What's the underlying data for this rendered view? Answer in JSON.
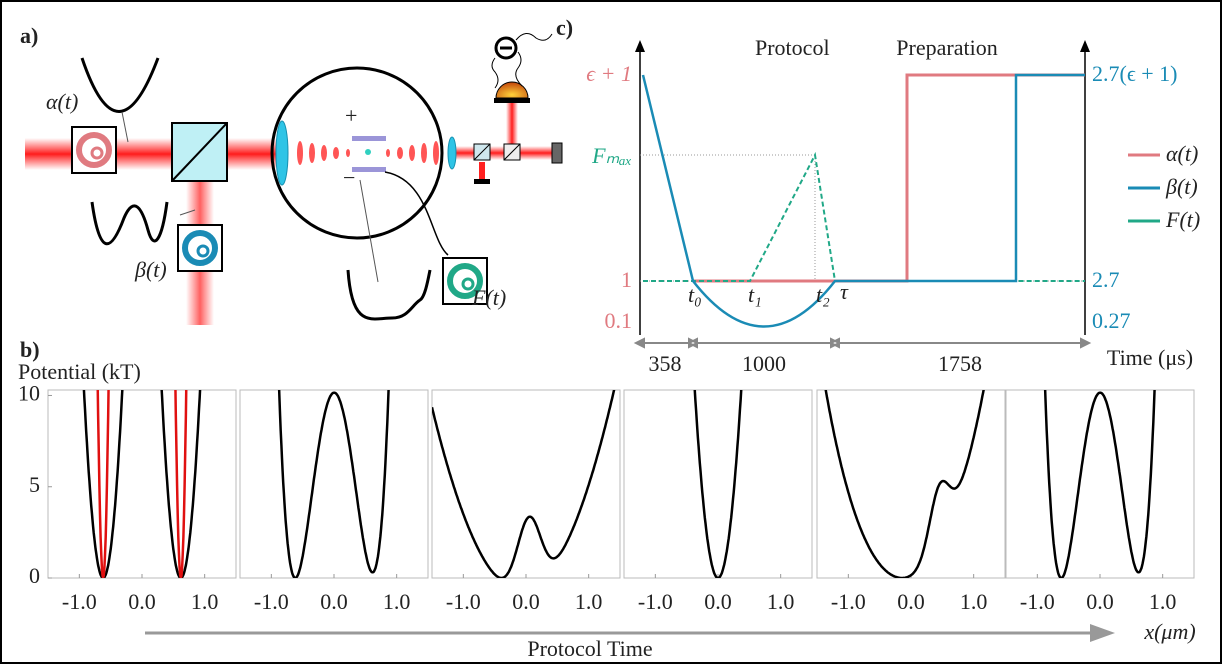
{
  "panel_a": {
    "label": "a)",
    "alpha": "α(t)",
    "beta": "β(t)",
    "force": "F(t)",
    "plus": "+",
    "minus": "−"
  },
  "panel_c": {
    "label": "c)",
    "phases": [
      "Protocol",
      "Preparation"
    ],
    "left_ticks": [
      "ϵ + 1",
      "Fₘₐₓ",
      1,
      0.1
    ],
    "right_ticks": [
      "2.7(ϵ + 1)",
      2.7,
      0.27
    ],
    "times": [
      "t₀",
      "t₁",
      "t₂",
      "τ"
    ],
    "durations": [
      358,
      1000,
      1758
    ],
    "time_label": "Time (μs)",
    "legend": [
      {
        "name": "α(t)",
        "color": "#e07a80"
      },
      {
        "name": "β(t)",
        "color": "#1a8bb5"
      },
      {
        "name": "F(t)",
        "color": "#20a887"
      }
    ]
  },
  "panel_b": {
    "label": "b)",
    "ylabel": "Potential (kT)",
    "yticks": [
      10,
      5,
      0
    ],
    "xticks": [
      {
        "value": -1,
        "label": "-1.0"
      },
      {
        "value": 0,
        "label": "0.0"
      },
      {
        "value": 1,
        "label": "1.0"
      }
    ],
    "xlim": [
      -1.5,
      1.5
    ],
    "ylim": [
      0,
      10.3
    ],
    "xlabel": "x(μm)",
    "time_arrow": "Protocol Time"
  }
}
